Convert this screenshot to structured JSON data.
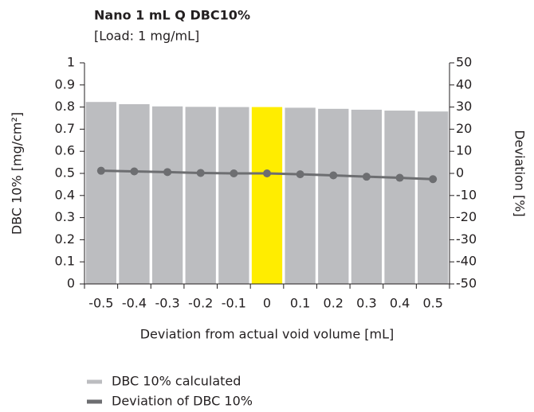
{
  "chart_data": {
    "type": "bar_line",
    "title": "Nano 1 mL Q DBC10%",
    "subtitle": "[Load: 1 mg/mL]",
    "x_label": "Deviation from actual void volume [mL]",
    "y_label": "DBC 10% [mg/cm²]",
    "y2_label": "Deviation [%]",
    "categories": [
      "-0.5",
      "-0.4",
      "-0.3",
      "-0.2",
      "-0.1",
      "0",
      "0.1",
      "0.2",
      "0.3",
      "0.4",
      "0.5"
    ],
    "series": [
      {
        "name": "DBC 10% calculated",
        "type": "bar",
        "color": "#bcbdc0",
        "colors": [
          "#bcbdc0",
          "#bcbdc0",
          "#bcbdc0",
          "#bcbdc0",
          "#bcbdc0",
          "#ffed00",
          "#bcbdc0",
          "#bcbdc0",
          "#bcbdc0",
          "#bcbdc0",
          "#bcbdc0"
        ],
        "values": [
          0.823,
          0.813,
          0.803,
          0.801,
          0.8,
          0.8,
          0.797,
          0.792,
          0.788,
          0.784,
          0.78
        ]
      },
      {
        "name": "Deviation of DBC 10%",
        "type": "line",
        "axis": "y2",
        "color": "#6d6e71",
        "values": [
          1.2,
          0.9,
          0.6,
          0.2,
          0,
          0,
          -0.4,
          -0.9,
          -1.5,
          -2,
          -2.6
        ]
      }
    ],
    "ylim": [
      0,
      1
    ],
    "yticks": [
      0,
      0.1,
      0.2,
      0.3,
      0.4,
      0.5,
      0.6,
      0.7,
      0.8,
      0.9,
      1
    ],
    "y2lim": [
      -50,
      50
    ],
    "y2ticks": [
      -50,
      -40,
      -30,
      -20,
      -10,
      0,
      10,
      20,
      30,
      40,
      50
    ],
    "legend": "bottom-left"
  }
}
